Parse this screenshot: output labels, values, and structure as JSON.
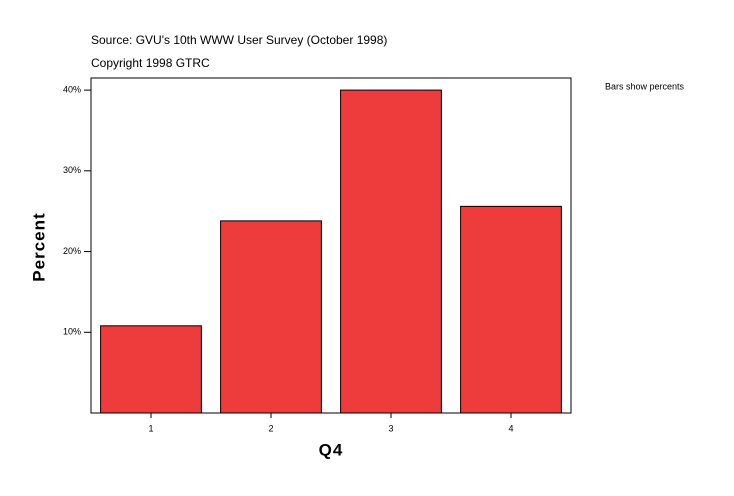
{
  "chart_data": {
    "type": "bar",
    "source": "Source: GVU's 10th WWW User Survey (October 1998)",
    "copyright": "Copyright 1998 GTRC",
    "note": "Bars show percents",
    "x_label": "Q4",
    "y_label": "Percent",
    "categories": [
      "1",
      "2",
      "3",
      "4"
    ],
    "values": [
      10.8,
      23.8,
      40.0,
      25.6
    ],
    "color": "#ee3b3b",
    "ylim": [
      0,
      41.5
    ],
    "yticks": [
      {
        "value": 10,
        "label": "10%"
      },
      {
        "value": 20,
        "label": "20%"
      },
      {
        "value": 30,
        "label": "30%"
      },
      {
        "value": 40,
        "label": "40%"
      }
    ]
  }
}
